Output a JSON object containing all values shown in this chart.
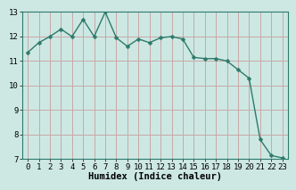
{
  "x": [
    0,
    1,
    2,
    3,
    4,
    5,
    6,
    7,
    8,
    9,
    10,
    11,
    12,
    13,
    14,
    15,
    16,
    17,
    18,
    19,
    20,
    21,
    22,
    23
  ],
  "y": [
    11.35,
    11.75,
    12.0,
    12.3,
    12.0,
    12.7,
    12.0,
    13.0,
    11.95,
    11.6,
    11.9,
    11.75,
    11.95,
    12.0,
    11.9,
    11.15,
    11.1,
    11.1,
    11.0,
    10.65,
    10.3,
    7.8,
    7.15,
    7.05
  ],
  "line_color": "#2d7a6b",
  "marker_color": "#2d7a6b",
  "bg_color": "#cde8e3",
  "grid_color_h": "#c8a8a8",
  "grid_color_v": "#c8a8a8",
  "xlabel": "Humidex (Indice chaleur)",
  "ylim": [
    7,
    13
  ],
  "xlim": [
    -0.5,
    23.5
  ],
  "yticks": [
    7,
    8,
    9,
    10,
    11,
    12,
    13
  ],
  "xticks": [
    0,
    1,
    2,
    3,
    4,
    5,
    6,
    7,
    8,
    9,
    10,
    11,
    12,
    13,
    14,
    15,
    16,
    17,
    18,
    19,
    20,
    21,
    22,
    23
  ],
  "xlabel_fontsize": 7.5,
  "tick_fontsize": 6.5,
  "linewidth": 1.0,
  "markersize": 2.5
}
